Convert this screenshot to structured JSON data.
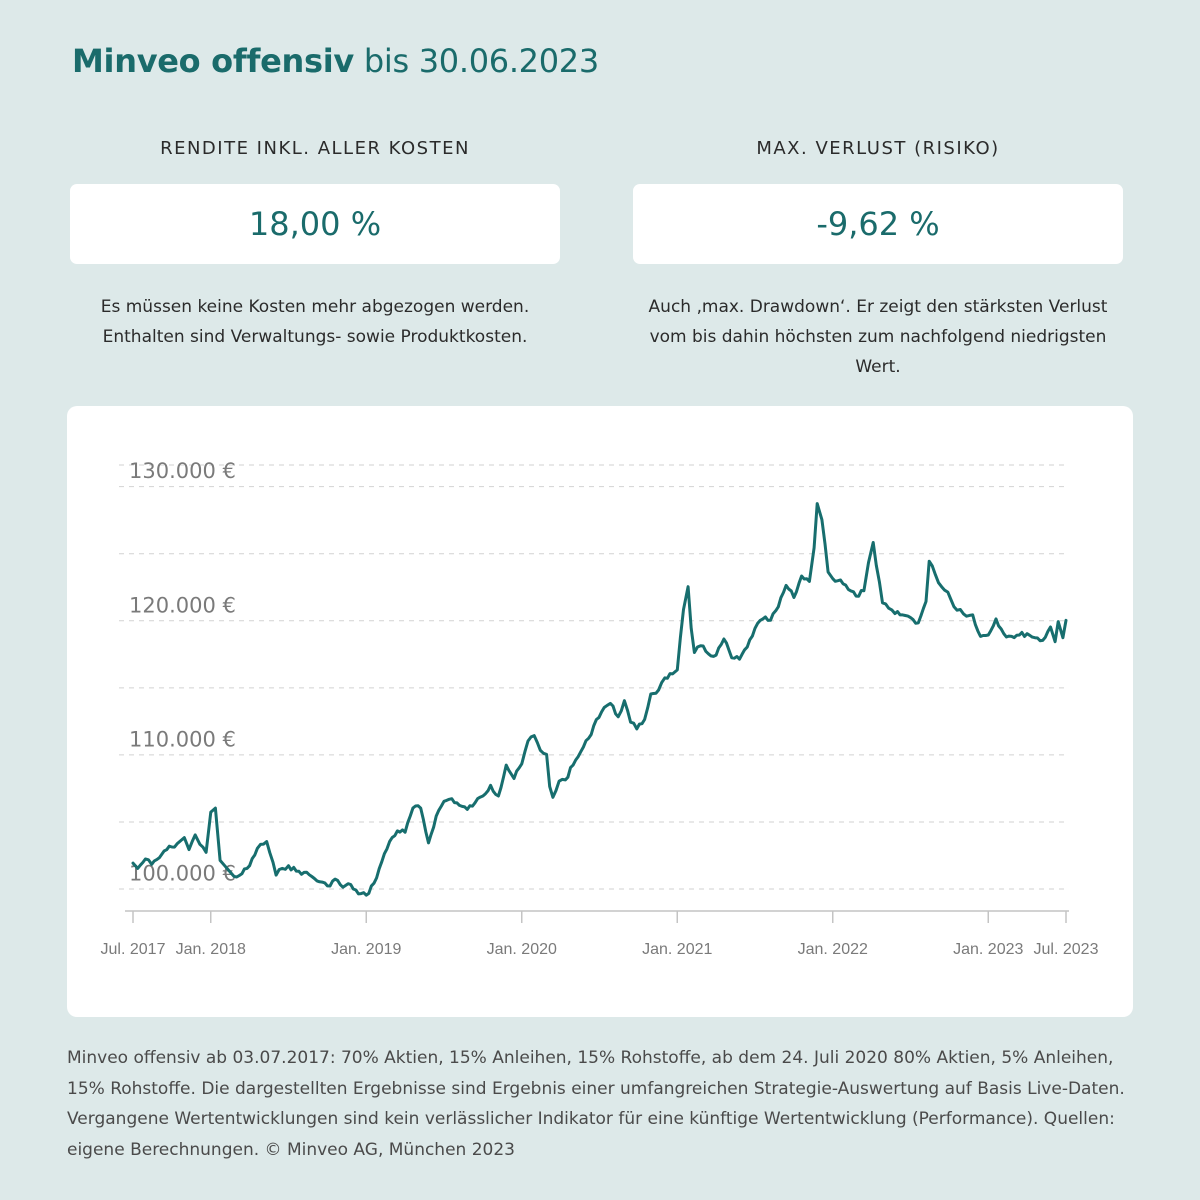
{
  "header": {
    "title_strong": "Minveo offensiv",
    "title_rest": " bis 30.06.2023"
  },
  "kpis": {
    "return": {
      "label": "RENDITE INKL. ALLER KOSTEN",
      "value": "18,00 %",
      "desc_line1": "Es müssen keine Kosten mehr abgezogen werden.",
      "desc_line2": "Enthalten sind Verwaltungs- sowie Produktkosten."
    },
    "risk": {
      "label": "MAX. VERLUST (RISIKO)",
      "value": "-9,62 %",
      "desc_line1": "Auch ‚max. Drawdown‘. Er zeigt den stärksten Verlust",
      "desc_line2": "vom bis dahin höchsten zum nachfolgend niedrigsten Wert."
    }
  },
  "colors": {
    "accent": "#1a6b6b",
    "background": "#dde9e9",
    "line": "#176e6e"
  },
  "chart_data": {
    "type": "line",
    "title": "",
    "xlabel": "",
    "ylabel": "",
    "ylim": [
      98400,
      131500
    ],
    "xlim": [
      2017.5,
      2023.5
    ],
    "grid": "horizontal-dashed",
    "y_ticks": [
      {
        "value": 100000,
        "label": "100.000 €"
      },
      {
        "value": 110000,
        "label": "110.000 €"
      },
      {
        "value": 120000,
        "label": "120.000 €"
      },
      {
        "value": 130000,
        "label": "130.000 €"
      }
    ],
    "x_ticks": [
      {
        "value": 2017.5,
        "label": "Jul. 2017"
      },
      {
        "value": 2018.0,
        "label": "Jan. 2018"
      },
      {
        "value": 2019.0,
        "label": "Jan. 2019"
      },
      {
        "value": 2020.0,
        "label": "Jan. 2020"
      },
      {
        "value": 2021.0,
        "label": "Jan. 2021"
      },
      {
        "value": 2022.0,
        "label": "Jan. 2022"
      },
      {
        "value": 2023.0,
        "label": "Jan. 2023"
      },
      {
        "value": 2023.5,
        "label": "Jul. 2023"
      }
    ],
    "series": [
      {
        "name": "Minveo offensiv",
        "x": [
          2017.5,
          2017.53,
          2017.58,
          2017.62,
          2017.67,
          2017.7,
          2017.75,
          2017.8,
          2017.83,
          2017.86,
          2017.9,
          2017.93,
          2017.97,
          2018.0,
          2018.03,
          2018.06,
          2018.09,
          2018.12,
          2018.15,
          2018.2,
          2018.25,
          2018.3,
          2018.36,
          2018.42,
          2018.46,
          2018.5,
          2018.55,
          2018.6,
          2018.65,
          2018.7,
          2018.75,
          2018.8,
          2018.85,
          2018.9,
          2018.95,
          2019.0,
          2019.05,
          2019.1,
          2019.15,
          2019.2,
          2019.25,
          2019.3,
          2019.35,
          2019.4,
          2019.45,
          2019.5,
          2019.55,
          2019.6,
          2019.65,
          2019.7,
          2019.75,
          2019.8,
          2019.85,
          2019.9,
          2019.95,
          2020.0,
          2020.04,
          2020.08,
          2020.12,
          2020.16,
          2020.18,
          2020.2,
          2020.24,
          2020.28,
          2020.33,
          2020.38,
          2020.43,
          2020.48,
          2020.53,
          2020.57,
          2020.62,
          2020.66,
          2020.7,
          2020.74,
          2020.79,
          2020.83,
          2020.88,
          2020.92,
          2020.97,
          2021.0,
          2021.04,
          2021.07,
          2021.09,
          2021.11,
          2021.15,
          2021.2,
          2021.25,
          2021.3,
          2021.35,
          2021.4,
          2021.45,
          2021.5,
          2021.55,
          2021.6,
          2021.65,
          2021.7,
          2021.75,
          2021.8,
          2021.85,
          2021.88,
          2021.9,
          2021.93,
          2021.95,
          2021.97,
          2022.0,
          2022.05,
          2022.1,
          2022.15,
          2022.2,
          2022.23,
          2022.26,
          2022.28,
          2022.32,
          2022.36,
          2022.4,
          2022.45,
          2022.5,
          2022.55,
          2022.6,
          2022.62,
          2022.66,
          2022.7,
          2022.74,
          2022.78,
          2022.82,
          2022.86,
          2022.9,
          2022.95,
          2023.0,
          2023.05,
          2023.1,
          2023.15,
          2023.2,
          2023.25,
          2023.3,
          2023.35,
          2023.4,
          2023.43,
          2023.45,
          2023.48,
          2023.5
        ],
        "values": [
          101900,
          101500,
          102200,
          101800,
          102300,
          102800,
          103100,
          103500,
          103800,
          102900,
          104000,
          103300,
          102700,
          105700,
          106000,
          102100,
          101700,
          101300,
          100900,
          101100,
          101700,
          103000,
          103500,
          101000,
          101500,
          101700,
          101300,
          101200,
          100900,
          100500,
          100200,
          100700,
          100100,
          100300,
          99600,
          99500,
          100400,
          102000,
          103500,
          104300,
          104200,
          106000,
          106000,
          103400,
          105400,
          106500,
          106700,
          106200,
          105900,
          106400,
          106900,
          107700,
          106900,
          109200,
          108200,
          109300,
          111000,
          111400,
          110300,
          110000,
          107600,
          106800,
          108000,
          108100,
          109200,
          110200,
          111200,
          112600,
          113500,
          113800,
          112800,
          114000,
          112400,
          111900,
          112600,
          114500,
          114800,
          115700,
          116000,
          116300,
          120800,
          122500,
          119400,
          117600,
          118100,
          117500,
          117400,
          118600,
          117200,
          117100,
          118000,
          119400,
          120100,
          120000,
          121000,
          122600,
          121700,
          123300,
          122900,
          125400,
          128700,
          127500,
          125700,
          123600,
          123100,
          123000,
          122300,
          121800,
          122200,
          124300,
          125800,
          124100,
          121300,
          120900,
          120500,
          120400,
          120200,
          119800,
          121400,
          124400,
          123400,
          122500,
          122100,
          121000,
          120800,
          120300,
          120400,
          118800,
          118900,
          120100,
          119000,
          118800,
          118900,
          119000,
          118700,
          118500,
          119500,
          118400,
          119900,
          118700,
          120000
        ]
      }
    ]
  },
  "footnote": "Minveo offensiv ab 03.07.2017: 70% Aktien, 15% Anleihen, 15% Rohstoffe, ab dem 24. Juli 2020 80% Aktien, 5% Anleihen, 15% Rohstoffe. Die dargestellten Ergebnisse sind Ergebnis einer umfangreichen Strategie-Auswertung auf Basis Live-Daten. Vergangene Wertentwicklungen sind kein verlässlicher Indikator für eine künftige Wertentwicklung (Performance). Quellen: eigene Berechnungen. © Minveo AG, München 2023"
}
